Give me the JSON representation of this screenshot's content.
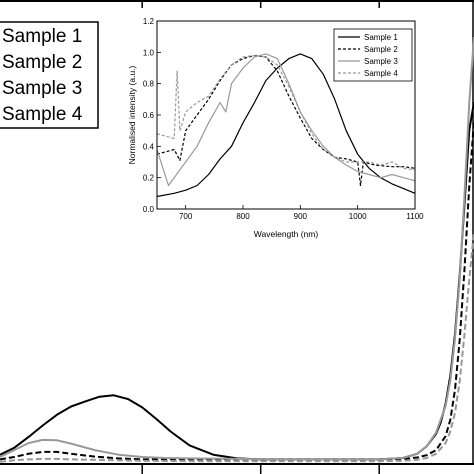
{
  "chart_data": [
    {
      "type": "line",
      "title": "",
      "xlabel": "",
      "ylabel": "",
      "legend": [
        "Sample 1",
        "Sample 2",
        "Sample 3",
        "Sample 4"
      ],
      "legend_position": "top-left",
      "x_range": [
        0,
        100
      ],
      "y_range": [
        0,
        100
      ],
      "series": [
        {
          "name": "Sample 1",
          "color": "#000000",
          "dash": "solid",
          "x": [
            0,
            3,
            6,
            9,
            12,
            15,
            18,
            21,
            24,
            27,
            30,
            33,
            36,
            40,
            45,
            50,
            55,
            60,
            65,
            70,
            75,
            80,
            85,
            88,
            90,
            92,
            93,
            94,
            95,
            96,
            97,
            98,
            99,
            100
          ],
          "y": [
            2,
            3.5,
            5.8,
            8.3,
            10.6,
            12.4,
            13.5,
            14.5,
            14.8,
            14,
            12.2,
            9.7,
            7,
            4,
            2,
            1.2,
            1,
            1,
            1,
            1,
            1,
            1,
            1.3,
            2.2,
            3.8,
            6.5,
            9,
            13,
            19,
            28,
            41,
            56,
            72,
            78
          ]
        },
        {
          "name": "Sample 2",
          "color": "#000000",
          "dash": "dashed",
          "x": [
            0,
            3,
            6,
            9,
            12,
            15,
            20,
            25,
            30,
            35,
            40,
            50,
            60,
            70,
            80,
            85,
            88,
            90,
            92,
            94,
            95,
            96,
            97,
            98,
            99,
            100
          ],
          "y": [
            1,
            1.5,
            2.2,
            2.6,
            2.6,
            2.2,
            1.6,
            1.2,
            1,
            1,
            1,
            1,
            1,
            1,
            1,
            1.1,
            1.4,
            1.9,
            3,
            6,
            9.5,
            16,
            27,
            42,
            60,
            74
          ]
        },
        {
          "name": "Sample 3",
          "color": "#999999",
          "dash": "solid",
          "x": [
            0,
            3,
            6,
            9,
            12,
            15,
            20,
            25,
            30,
            35,
            40,
            50,
            60,
            70,
            80,
            85,
            88,
            90,
            92,
            94,
            95,
            96,
            97,
            98,
            99,
            100
          ],
          "y": [
            1.5,
            3,
            4.5,
            5.2,
            5.1,
            4.4,
            3,
            2,
            1.5,
            1.3,
            1.2,
            1.1,
            1,
            1,
            1,
            1.3,
            2.2,
            3.8,
            6.8,
            12.5,
            18,
            27,
            40,
            58,
            78,
            92
          ]
        },
        {
          "name": "Sample 4",
          "color": "#999999",
          "dash": "dashed",
          "x": [
            0,
            3,
            6,
            9,
            12,
            15,
            20,
            25,
            30,
            40,
            50,
            60,
            70,
            80,
            85,
            88,
            90,
            92,
            94,
            95,
            96,
            97,
            98,
            99,
            100
          ],
          "y": [
            0.5,
            0.8,
            1,
            1.1,
            1.1,
            1,
            0.9,
            0.8,
            0.7,
            0.6,
            0.6,
            0.6,
            0.6,
            0.6,
            0.7,
            0.9,
            1.3,
            2.2,
            4.5,
            7,
            11,
            18,
            28,
            40,
            50
          ]
        }
      ]
    },
    {
      "type": "line",
      "title": "",
      "xlabel": "Wavelength (nm)",
      "ylabel": "Normalised intensity (a.u.)",
      "xlim": [
        650,
        1100
      ],
      "ylim": [
        0,
        1.2
      ],
      "xticks": [
        700,
        800,
        900,
        1000,
        1100
      ],
      "yticks": [
        0.0,
        0.2,
        0.4,
        0.6,
        0.8,
        1.0,
        1.2
      ],
      "ytick_labels": [
        "0.0",
        "0.2",
        "0.4",
        "0.6",
        "0.8",
        "1.0",
        "1.2"
      ],
      "legend_position": "top-right",
      "series": [
        {
          "name": "Sample 1",
          "color": "#000000",
          "dash": "solid",
          "x": [
            650,
            680,
            700,
            720,
            740,
            760,
            780,
            800,
            820,
            840,
            860,
            880,
            900,
            920,
            940,
            960,
            980,
            1000,
            1020,
            1040,
            1060,
            1080,
            1100
          ],
          "y": [
            0.08,
            0.1,
            0.12,
            0.15,
            0.22,
            0.32,
            0.4,
            0.55,
            0.68,
            0.82,
            0.9,
            0.96,
            0.99,
            0.96,
            0.86,
            0.7,
            0.5,
            0.35,
            0.26,
            0.2,
            0.16,
            0.13,
            0.1
          ]
        },
        {
          "name": "Sample 2",
          "color": "#000000",
          "dash": "dashed",
          "x": [
            650,
            680,
            690,
            700,
            720,
            740,
            760,
            780,
            800,
            820,
            840,
            860,
            880,
            900,
            920,
            940,
            960,
            980,
            1000,
            1005,
            1010,
            1030,
            1060,
            1080,
            1100
          ],
          "y": [
            0.35,
            0.38,
            0.31,
            0.5,
            0.6,
            0.7,
            0.82,
            0.92,
            0.96,
            0.98,
            0.97,
            0.88,
            0.72,
            0.58,
            0.45,
            0.38,
            0.33,
            0.32,
            0.3,
            0.15,
            0.3,
            0.28,
            0.27,
            0.27,
            0.26
          ]
        },
        {
          "name": "Sample 3",
          "color": "#999999",
          "dash": "solid",
          "x": [
            650,
            670,
            690,
            700,
            720,
            740,
            760,
            770,
            780,
            800,
            820,
            840,
            860,
            880,
            900,
            920,
            940,
            960,
            980,
            1000,
            1020,
            1040,
            1060,
            1080,
            1100
          ],
          "y": [
            0.38,
            0.15,
            0.25,
            0.3,
            0.4,
            0.55,
            0.68,
            0.62,
            0.8,
            0.9,
            0.97,
            0.99,
            0.96,
            0.8,
            0.62,
            0.5,
            0.4,
            0.33,
            0.28,
            0.24,
            0.22,
            0.2,
            0.22,
            0.2,
            0.18
          ]
        },
        {
          "name": "Sample 4",
          "color": "#999999",
          "dash": "dashed",
          "x": [
            650,
            680,
            685,
            690,
            700,
            720,
            740,
            760,
            780,
            800,
            820,
            840,
            860,
            880,
            900,
            920,
            940,
            960,
            980,
            1000,
            1020,
            1040,
            1060,
            1080,
            1100
          ],
          "y": [
            0.48,
            0.45,
            0.88,
            0.5,
            0.62,
            0.68,
            0.72,
            0.83,
            0.92,
            0.97,
            0.98,
            0.97,
            0.92,
            0.78,
            0.62,
            0.48,
            0.38,
            0.33,
            0.3,
            0.3,
            0.3,
            0.28,
            0.3,
            0.26,
            0.25
          ]
        }
      ]
    }
  ]
}
